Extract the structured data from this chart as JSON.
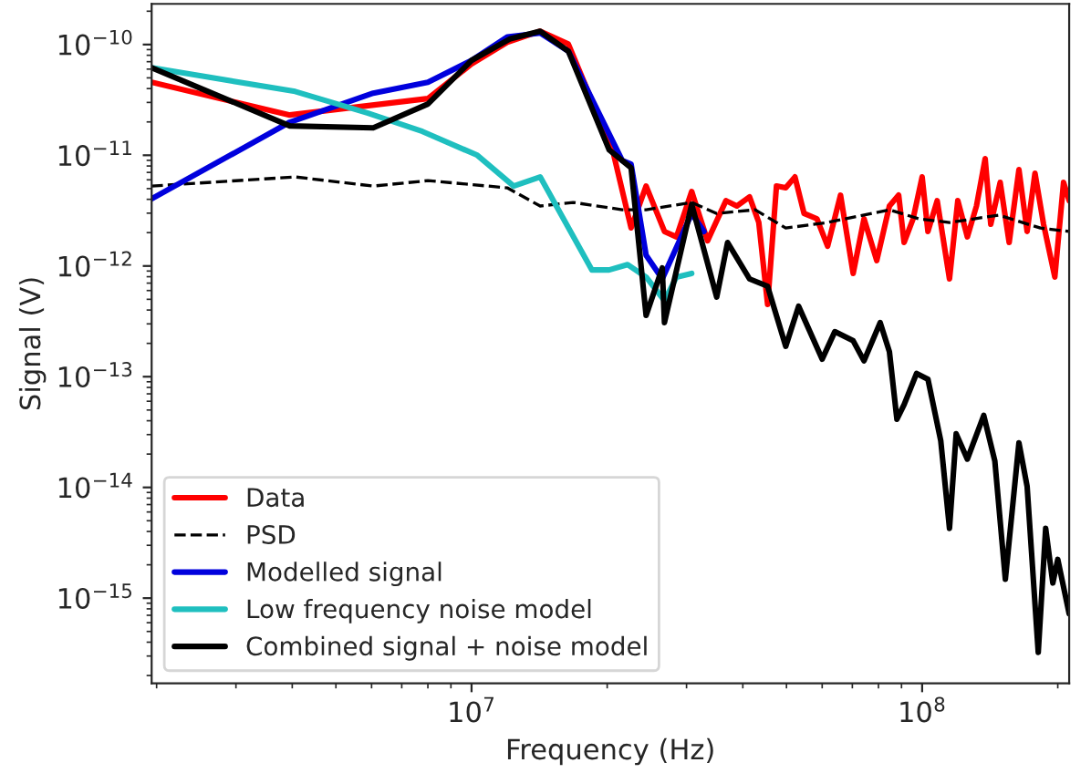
{
  "chart_data": {
    "type": "line",
    "xlabel": "Frequency (Hz)",
    "ylabel": "Signal (V)",
    "log": "xy",
    "legend": "bottom left",
    "xlim": [
      1950000.0,
      212000000.0
    ],
    "xticks": [
      {
        "value": 10000000.0,
        "label": "10$^{7}$"
      },
      {
        "value": 100000000.0,
        "label": "10$^{8}$"
      }
    ],
    "ylim": [
      1.7e-16,
      2.33e-10
    ],
    "yticks": [
      {
        "value": 1e-15,
        "label": "10$^{−15}$"
      },
      {
        "value": 1e-14,
        "label": "10$^{−14}$"
      },
      {
        "value": 1e-13,
        "label": "10$^{−13}$"
      },
      {
        "value": 1e-12,
        "label": "10$^{−12}$"
      },
      {
        "value": 1e-11,
        "label": "10$^{−11}$"
      },
      {
        "value": 1e-10,
        "label": "10$^{−10}$"
      }
    ],
    "series": [
      {
        "name": "Data",
        "color": "#ff0000",
        "line_style": "solid",
        "x": [
          1950000.0,
          3950000.0,
          8000000.0,
          10000000.0,
          12000000.0,
          14200000.0,
          16400000.0,
          20600000.0,
          22600000.0,
          24400000.0,
          26800000.0,
          28500000.0,
          30800000.0,
          33400000.0,
          36700000.0,
          38800000.0,
          41400000.0,
          43400000.0,
          45400000.0,
          47500000.0,
          49800000.0,
          52200000.0,
          54700000.0,
          58400000.0,
          61700000.0,
          65900000.0,
          70300000.0,
          74300000.0,
          79300000.0,
          84600000.0,
          88700000.0,
          91200000.0,
          95500000.0,
          100000000.0,
          103000000.0,
          108000000.0,
          115000000.0,
          120000000.0,
          126000000.0,
          132000000.0,
          138000000.0,
          142000000.0,
          149000000.0,
          156000000.0,
          164000000.0,
          171000000.0,
          178000000.0,
          186000000.0,
          197000000.0,
          206000000.0,
          212000000.0
        ],
        "values": [
          4.56e-11,
          2.31e-11,
          3.25e-11,
          6.67e-11,
          1.05e-10,
          1.32e-10,
          1.01e-10,
          1.08e-11,
          2.21e-12,
          5.27e-12,
          2.05e-12,
          1.83e-12,
          4.71e-12,
          1.69e-12,
          3.89e-12,
          3.48e-12,
          4.2e-12,
          2.47e-12,
          4.5e-13,
          5.27e-12,
          5.08e-12,
          6.37e-12,
          2.98e-12,
          2.67e-12,
          1.51e-12,
          4.36e-12,
          8.57e-13,
          2.67e-12,
          1.12e-12,
          3.48e-12,
          4.36e-12,
          1.63e-12,
          2.67e-12,
          6.37e-12,
          2.05e-12,
          3.89e-12,
          7.64e-13,
          3.89e-12,
          1.83e-12,
          3.48e-12,
          9.31e-12,
          2.38e-12,
          5.69e-12,
          1.63e-12,
          7.41e-12,
          2.05e-12,
          6.87e-12,
          2.38e-12,
          7.94e-13,
          5.69e-12,
          3.89e-12
        ]
      },
      {
        "name": "PSD",
        "color": "#000000",
        "line_style": "dashed",
        "x": [
          1950000.0,
          4060000.0,
          6050000.0,
          8000000.0,
          12000000.0,
          14200000.0,
          16800000.0,
          21600000.0,
          24400000.0,
          30800000.0,
          35000000.0,
          42600000.0,
          49800000.0,
          61700000.0,
          84600000.0,
          98200000.0,
          115000000.0,
          148000000.0,
          183000000.0,
          212000000.0
        ],
        "values": [
          5.27e-12,
          6.37e-12,
          5.27e-12,
          5.9e-12,
          5.08e-12,
          3.48e-12,
          3.75e-12,
          3.22e-12,
          3.22e-12,
          3.75e-12,
          2.98e-12,
          3.22e-12,
          2.2e-12,
          2.47e-12,
          3.22e-12,
          2.67e-12,
          2.47e-12,
          2.88e-12,
          2.2e-12,
          2.05e-12
        ]
      },
      {
        "name": "Modelled signal",
        "color": "#0000dd",
        "line_style": "solid",
        "x": [
          1950000.0,
          3950000.0,
          6050000.0,
          8000000.0,
          10000000.0,
          12000000.0,
          14200000.0,
          16400000.0,
          21600000.0,
          22600000.0,
          24400000.0,
          26500000.0,
          30800000.0,
          32800000.0
        ],
        "values": [
          4.04e-12,
          1.99e-11,
          3.64e-11,
          4.56e-11,
          7.19e-11,
          1.17e-10,
          1.27e-10,
          8.7e-11,
          8.95e-12,
          8.3e-12,
          1.25e-12,
          7.64e-13,
          2.98e-12,
          2.05e-12
        ]
      },
      {
        "name": "Low frequency noise model",
        "color": "#1fbfbf",
        "line_style": "solid",
        "x": [
          1950000.0,
          4060000.0,
          5890000.0,
          7780000.0,
          10300000.0,
          12400000.0,
          14200000.0,
          18500000.0,
          20200000.0,
          22200000.0,
          24400000.0,
          26800000.0,
          28500000.0,
          30800000.0
        ],
        "values": [
          6.18e-11,
          3.77e-11,
          2.4e-11,
          1.64e-11,
          1e-11,
          5.27e-12,
          6.37e-12,
          9.2e-13,
          9.2e-13,
          1.03e-12,
          7.94e-13,
          4.85e-13,
          7.94e-13,
          8.57e-13
        ]
      },
      {
        "name": "Combined signal + noise model",
        "color": "#000000",
        "line_style": "solid",
        "x": [
          1950000.0,
          3950000.0,
          6050000.0,
          8000000.0,
          10000000.0,
          12200000.0,
          14200000.0,
          16400000.0,
          20200000.0,
          22600000.0,
          24400000.0,
          26500000.0,
          26800000.0,
          30800000.0,
          35000000.0,
          37000000.0,
          41400000.0,
          45400000.0,
          49800000.0,
          53200000.0,
          60000000.0,
          64000000.0,
          70300000.0,
          74300000.0,
          80700000.0,
          84600000.0,
          87900000.0,
          91200000.0,
          97200000.0,
          103000000.0,
          110000000.0,
          115000000.0,
          119000000.0,
          126000000.0,
          137000000.0,
          145000000.0,
          153000000.0,
          164000000.0,
          171000000.0,
          181000000.0,
          188000000.0,
          195000000.0,
          200000000.0,
          212000000.0
        ],
        "values": [
          6.18e-11,
          1.84e-11,
          1.77e-11,
          2.9e-11,
          7.19e-11,
          1.13e-10,
          1.32e-10,
          8.7e-11,
          1.12e-11,
          7.7e-12,
          3.58e-13,
          9.6e-13,
          3.08e-13,
          3.6e-12,
          5.24e-13,
          1.63e-12,
          7.64e-13,
          6.56e-13,
          1.88e-13,
          4.33e-13,
          1.44e-13,
          2.55e-13,
          2.11e-13,
          1.39e-13,
          3.08e-13,
          1.68e-13,
          4.13e-14,
          5.6e-14,
          1.07e-13,
          9.5e-14,
          2.63e-14,
          4.27e-15,
          3.05e-14,
          1.8e-14,
          4.47e-14,
          1.73e-14,
          1.48e-15,
          2.53e-14,
          1.02e-14,
          3.24e-16,
          4.27e-15,
          1.37e-15,
          2.24e-15,
          7.2e-16
        ]
      }
    ]
  }
}
